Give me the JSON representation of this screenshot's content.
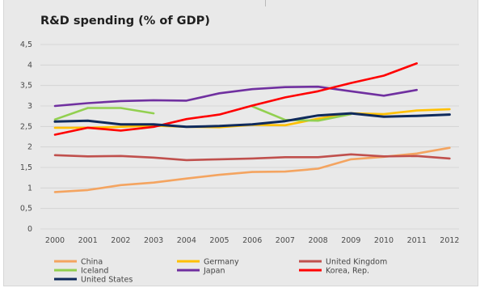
{
  "chart_data": {
    "type": "line",
    "title": "R&D spending (% of GDP)",
    "xlabel": "",
    "ylabel": "",
    "ylim": [
      0,
      4.5
    ],
    "yticks": [
      "0",
      "0,5",
      "1",
      "1,5",
      "2",
      "2,5",
      "3",
      "3,5",
      "4",
      "4,5"
    ],
    "categories": [
      "2000",
      "2001",
      "2002",
      "2003",
      "2004",
      "2005",
      "2006",
      "2007",
      "2008",
      "2009",
      "2010",
      "2011",
      "2012"
    ],
    "grid": true,
    "legend_position": "bottom",
    "series": [
      {
        "name": "China",
        "color": "#f4a460",
        "values": [
          0.9,
          0.95,
          1.07,
          1.13,
          1.23,
          1.32,
          1.39,
          1.4,
          1.47,
          1.7,
          1.76,
          1.84,
          1.98
        ]
      },
      {
        "name": "Germany",
        "color": "#ffc000",
        "values": [
          2.47,
          2.47,
          2.49,
          2.52,
          2.49,
          2.48,
          2.54,
          2.53,
          2.69,
          2.82,
          2.8,
          2.89,
          2.92
        ]
      },
      {
        "name": "United Kingdom",
        "color": "#c0504d",
        "values": [
          1.8,
          1.77,
          1.78,
          1.74,
          1.68,
          1.7,
          1.72,
          1.75,
          1.75,
          1.82,
          1.77,
          1.78,
          1.72
        ]
      },
      {
        "name": "Iceland",
        "color": "#92d050",
        "values": [
          2.67,
          2.95,
          2.95,
          2.82,
          null,
          null,
          2.99,
          2.66,
          2.64,
          2.8,
          null,
          null,
          null
        ]
      },
      {
        "name": "Japan",
        "color": "#7030a0",
        "values": [
          3.0,
          3.07,
          3.12,
          3.14,
          3.13,
          3.31,
          3.41,
          3.46,
          3.47,
          3.36,
          3.25,
          3.39,
          null
        ]
      },
      {
        "name": "Korea, Rep.",
        "color": "#ff0000",
        "values": [
          2.3,
          2.47,
          2.4,
          2.49,
          2.68,
          2.79,
          3.01,
          3.21,
          3.36,
          3.56,
          3.74,
          4.04,
          null
        ]
      },
      {
        "name": "United States",
        "color": "#0f2a5c",
        "values": [
          2.62,
          2.64,
          2.55,
          2.55,
          2.49,
          2.51,
          2.55,
          2.63,
          2.77,
          2.82,
          2.74,
          2.76,
          2.79
        ]
      }
    ]
  }
}
